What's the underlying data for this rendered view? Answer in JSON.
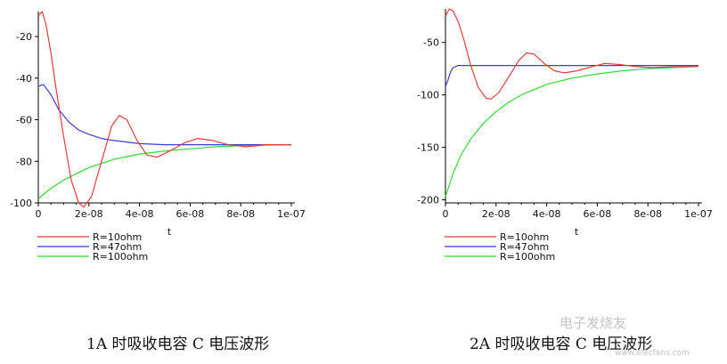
{
  "chart_data": [
    {
      "type": "line",
      "xlabel": "t",
      "ylabel": "",
      "xlim": [
        0,
        1e-07
      ],
      "ylim": [
        -100,
        -8
      ],
      "x_ticks": [
        "0",
        "2e-08",
        "4e-08",
        "6e-08",
        "8e-08",
        "1e-07"
      ],
      "y_ticks": [
        "-20",
        "-40",
        "-60",
        "-80",
        "-100"
      ],
      "legend_position": "below",
      "series": [
        {
          "name": "R=10ohm",
          "color": "#e53a3a",
          "x": [
            0,
            1.5e-09,
            3e-09,
            5e-09,
            7e-09,
            1e-08,
            1.3e-08,
            1.6e-08,
            1.8e-08,
            2.1e-08,
            2.5e-08,
            2.9e-08,
            3.2e-08,
            3.5e-08,
            3.9e-08,
            4.3e-08,
            4.7e-08,
            5.2e-08,
            5.8e-08,
            6.3e-08,
            6.9e-08,
            7.5e-08,
            8.2e-08,
            9e-08,
            1e-07
          ],
          "y": [
            -10,
            -8,
            -14,
            -28,
            -45,
            -68,
            -89,
            -100,
            -102,
            -97,
            -80,
            -63,
            -58,
            -60,
            -70,
            -77,
            -78,
            -75,
            -71,
            -69,
            -70,
            -72,
            -73,
            -72,
            -72
          ]
        },
        {
          "name": "R=47ohm",
          "color": "#3b3bd6",
          "x": [
            0,
            2e-09,
            5e-09,
            8e-09,
            1.2e-08,
            1.6e-08,
            2e-08,
            2.5e-08,
            3e-08,
            4e-08,
            5e-08,
            6e-08,
            8e-08,
            1e-07
          ],
          "y": [
            -44,
            -43,
            -48,
            -55,
            -61,
            -65,
            -67,
            -69,
            -70,
            -71.5,
            -72,
            -72,
            -72,
            -72
          ]
        },
        {
          "name": "R=100ohm",
          "color": "#2fdc2f",
          "x": [
            0,
            5e-09,
            1e-08,
            1.5e-08,
            2e-08,
            3e-08,
            4e-08,
            5e-08,
            6e-08,
            7e-08,
            8e-08,
            9e-08,
            1e-07
          ],
          "y": [
            -98,
            -93,
            -89,
            -86,
            -83,
            -79,
            -76.5,
            -75,
            -74,
            -73,
            -72.5,
            -72.2,
            -72
          ]
        }
      ],
      "caption": "1A 时吸收电容 C 电压波形"
    },
    {
      "type": "line",
      "xlabel": "t",
      "ylabel": "",
      "xlim": [
        0,
        1e-07
      ],
      "ylim": [
        -203,
        -18
      ],
      "x_ticks": [
        "0",
        "2e-08",
        "4e-08",
        "6e-08",
        "8e-08",
        "1e-07"
      ],
      "y_ticks": [
        "-50",
        "-100",
        "-150",
        "-200"
      ],
      "legend_position": "below",
      "series": [
        {
          "name": "R=10ohm",
          "color": "#e53a3a",
          "x": [
            0,
            1.5e-09,
            3e-09,
            5e-09,
            7e-09,
            1e-08,
            1.3e-08,
            1.6e-08,
            1.8e-08,
            2.1e-08,
            2.5e-08,
            2.9e-08,
            3.2e-08,
            3.5e-08,
            3.9e-08,
            4.3e-08,
            4.7e-08,
            5.2e-08,
            5.8e-08,
            6.3e-08,
            6.9e-08,
            7.5e-08,
            8.2e-08,
            9e-08,
            1e-07
          ],
          "y": [
            -25,
            -18,
            -20,
            -30,
            -45,
            -72,
            -93,
            -103,
            -104,
            -98,
            -83,
            -67,
            -60,
            -61,
            -70,
            -77,
            -79,
            -77,
            -73,
            -70,
            -71,
            -73,
            -74,
            -73,
            -73
          ]
        },
        {
          "name": "R=47ohm",
          "color": "#3b3bd6",
          "x": [
            0,
            1e-09,
            2e-09,
            3e-09,
            5e-09,
            8e-09,
            1.2e-08,
            2e-08,
            4e-08,
            6e-08,
            8e-08,
            1e-07
          ],
          "y": [
            -92,
            -86,
            -78,
            -74,
            -72,
            -72,
            -72,
            -72,
            -72,
            -72,
            -72,
            -72
          ]
        },
        {
          "name": "R=100ohm",
          "color": "#2fdc2f",
          "x": [
            0,
            3e-09,
            6e-09,
            1e-08,
            1.5e-08,
            2e-08,
            2.5e-08,
            3e-08,
            4e-08,
            5e-08,
            6e-08,
            7e-08,
            8e-08,
            9e-08,
            1e-07
          ],
          "y": [
            -197,
            -175,
            -158,
            -142,
            -127,
            -116,
            -107,
            -100,
            -90,
            -84,
            -80,
            -77,
            -75,
            -74,
            -73
          ]
        }
      ],
      "caption": "2A 时吸收电容 C 电压波形"
    }
  ],
  "watermark": {
    "text": "电子发烧友",
    "sub": "www.elecfans.com"
  }
}
